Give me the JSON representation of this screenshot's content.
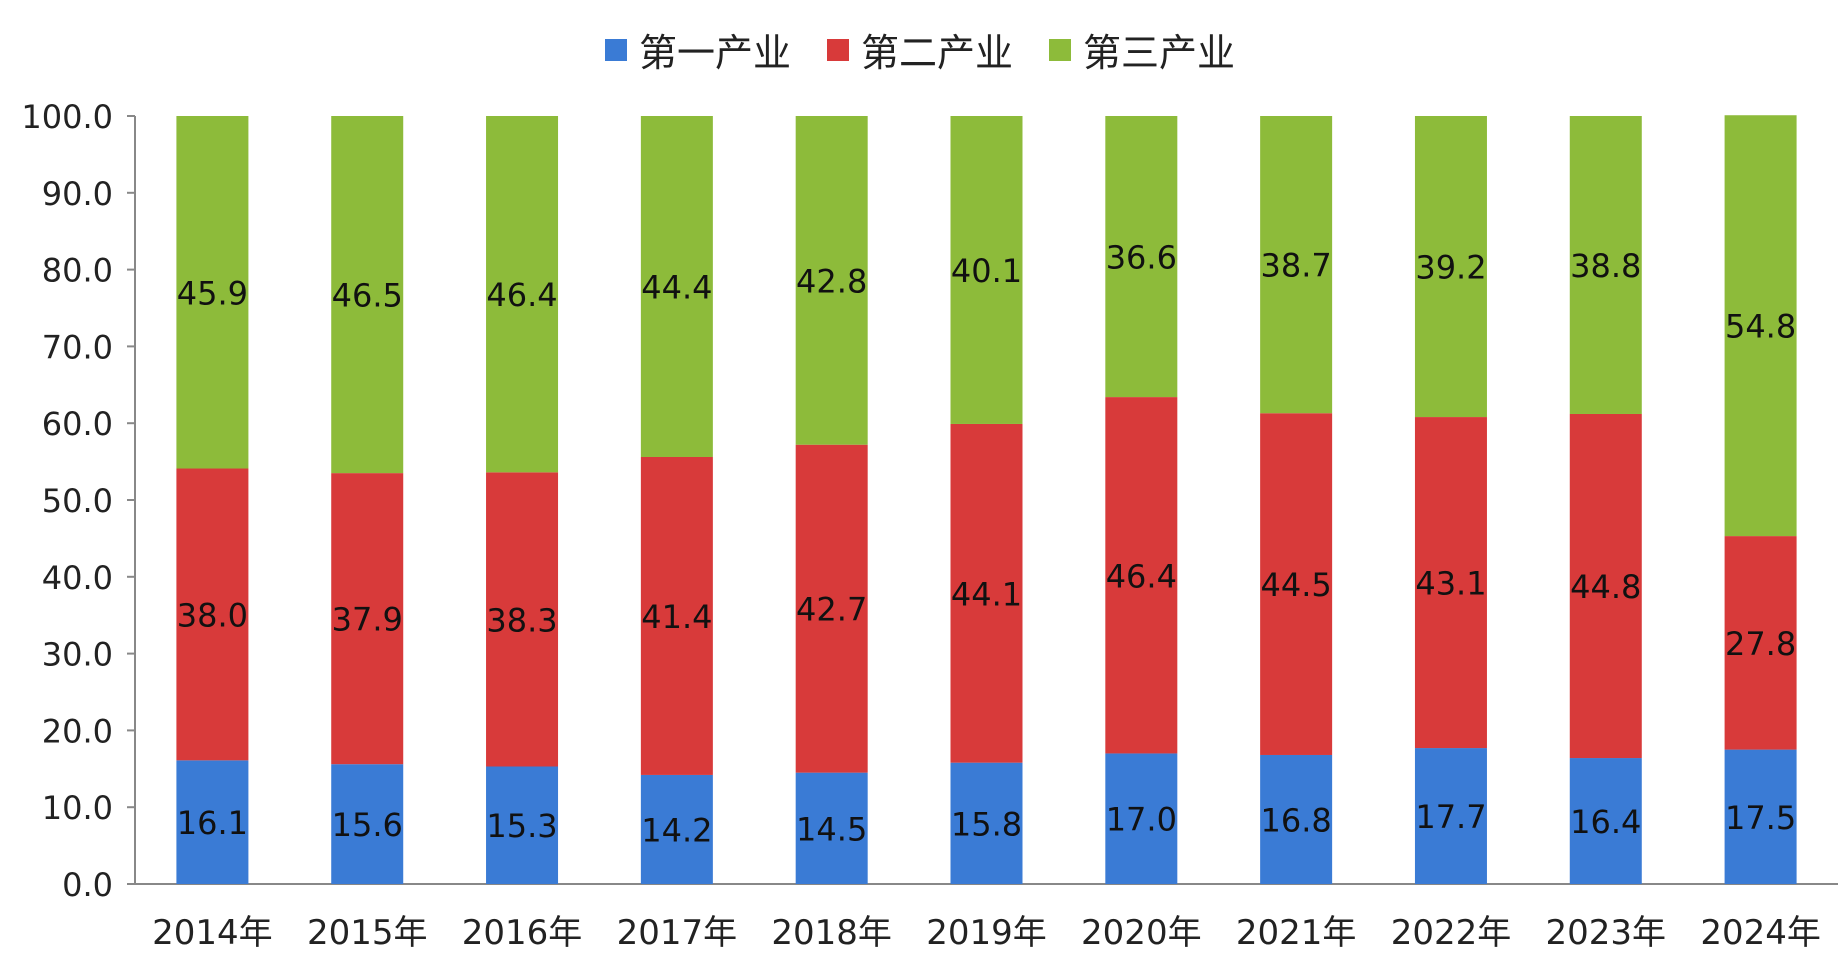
{
  "chart_data": {
    "type": "bar",
    "stacked": true,
    "categories": [
      "2014年",
      "2015年",
      "2016年",
      "2017年",
      "2018年",
      "2019年",
      "2020年",
      "2021年",
      "2022年",
      "2023年",
      "2024年"
    ],
    "series": [
      {
        "name": "第一产业",
        "color": "#3a7bd5",
        "values": [
          16.1,
          15.6,
          15.3,
          14.2,
          14.5,
          15.8,
          17.0,
          16.8,
          17.7,
          16.4,
          17.5
        ]
      },
      {
        "name": "第二产业",
        "color": "#d83a3a",
        "values": [
          38.0,
          37.9,
          38.3,
          41.4,
          42.7,
          44.1,
          46.4,
          44.5,
          43.1,
          44.8,
          27.8
        ]
      },
      {
        "name": "第三产业",
        "color": "#8dbb3a",
        "values": [
          45.9,
          46.5,
          46.4,
          44.4,
          42.8,
          40.1,
          36.6,
          38.7,
          39.2,
          38.8,
          54.8
        ]
      }
    ],
    "yticks": [
      "0.0",
      "10.0",
      "20.0",
      "30.0",
      "40.0",
      "50.0",
      "60.0",
      "70.0",
      "80.0",
      "90.0",
      "100.0"
    ],
    "ylim": [
      0,
      100
    ],
    "legend_position": "top-center",
    "grid": false
  }
}
